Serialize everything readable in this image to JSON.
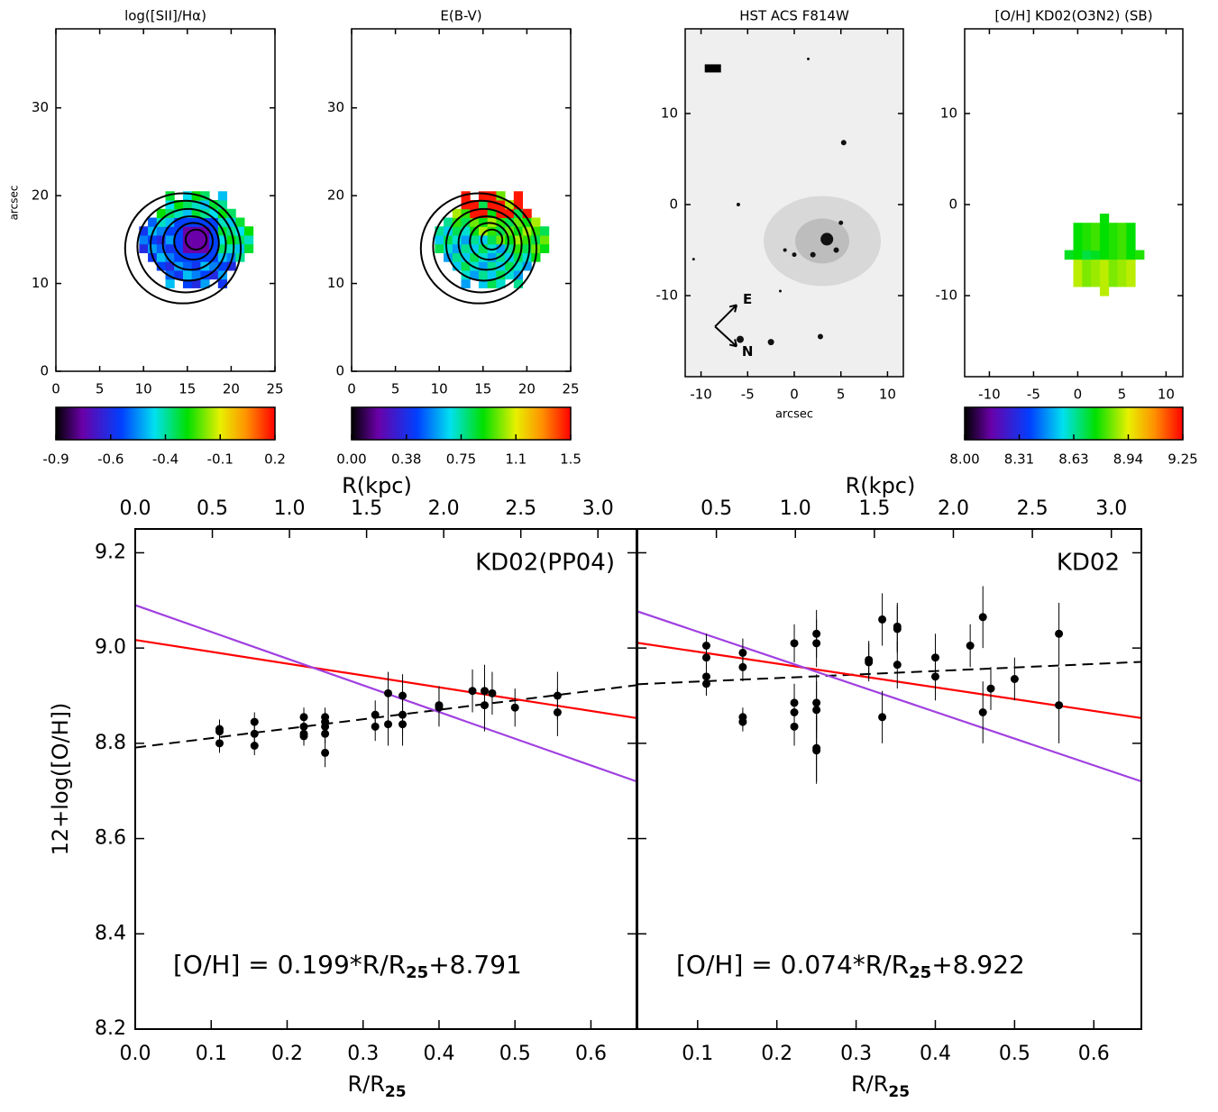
{
  "chart_data": [
    {
      "type": "heatmap",
      "title": "log([SII]/Hα)",
      "ylabel": "arcsec",
      "xlim": [
        0,
        25
      ],
      "ylim": [
        0,
        39
      ],
      "xticks": [
        0,
        5,
        10,
        15,
        20,
        25
      ],
      "yticks": [
        0,
        10,
        20,
        30
      ],
      "colormap": "rainbow",
      "colorbar": {
        "lim": [
          -0.9,
          0.2
        ],
        "ticks": [
          -0.9,
          {
            "value": -0.625,
            "label": "-0.6"
          },
          {
            "value": -0.35,
            "label": "-0.4"
          },
          {
            "value": -0.075,
            "label": "-0.1"
          },
          0.2
        ]
      }
    },
    {
      "type": "heatmap",
      "title": "E(B-V)",
      "xlim": [
        0,
        25
      ],
      "ylim": [
        0,
        39
      ],
      "xticks": [
        0,
        5,
        10,
        15,
        20,
        25
      ],
      "yticks": [
        0,
        10,
        20,
        30
      ],
      "colormap": "rainbow",
      "colorbar": {
        "lim": [
          0,
          1.5
        ],
        "ticks": [
          {
            "value": 0,
            "label": "0.00"
          },
          {
            "value": 0.375,
            "label": "0.38"
          },
          0.75,
          {
            "value": 1.125,
            "label": "1.1"
          },
          1.5
        ]
      }
    },
    {
      "type": "image",
      "title": "HST ACS F814W",
      "xlabel": "arcsec",
      "xlim": [
        -11.7,
        11.7
      ],
      "ylim": [
        -18.9,
        19.3
      ],
      "xticks": [
        -10,
        -5,
        0,
        5,
        10
      ],
      "yticks": [
        -10,
        0,
        10
      ],
      "annotations": [
        "E",
        "N"
      ]
    },
    {
      "type": "heatmap",
      "title": "[O/H] KD02(O3N2) (SB)",
      "xlim": [
        -12.8,
        11.9
      ],
      "ylim": [
        -18.9,
        19.3
      ],
      "xticks": [
        -10,
        -5,
        0,
        5,
        10
      ],
      "yticks": [
        -10,
        0,
        10
      ],
      "colormap": "rainbow",
      "colorbar": {
        "lim": [
          8,
          9.25
        ],
        "ticks": [
          {
            "value": 8,
            "label": "8.00"
          },
          {
            "value": 8.3125,
            "label": "8.31"
          },
          {
            "value": 8.625,
            "label": "8.63"
          },
          {
            "value": 8.9375,
            "label": "8.94"
          },
          9.25
        ]
      }
    },
    {
      "type": "scatter",
      "label": "KD02(PP04)",
      "ylabel": "12+log([O/H])",
      "xlabel": "R/R",
      "xlabel_sub": "25",
      "x2label": "R(kpc)",
      "equation": "[O/H] = 0.199*R/R",
      "equation_sub": "25",
      "equation_end": "+8.791",
      "xlim": [
        0,
        0.66
      ],
      "ylim": [
        8.2,
        9.25
      ],
      "x2lim": [
        0,
        3.25
      ],
      "xticks": [
        {
          "value": 0,
          "label": "0.0"
        },
        0.1,
        0.2,
        0.3,
        0.4,
        0.5,
        0.6
      ],
      "x2ticks": [
        {
          "value": 0,
          "label": "0.0"
        },
        0.5,
        {
          "value": 1,
          "label": "1.0"
        },
        1.5,
        {
          "value": 2,
          "label": "2.0"
        },
        2.5,
        {
          "value": 3,
          "label": "3.0"
        }
      ],
      "yticks": [
        8.2,
        8.4,
        8.6,
        8.8,
        {
          "value": 9,
          "label": "9.0"
        },
        9.2
      ],
      "color": "#000000",
      "x": [
        0.111,
        0.111,
        0.111,
        0.157,
        0.157,
        0.157,
        0.222,
        0.222,
        0.222,
        0.222,
        0.25,
        0.25,
        0.25,
        0.25,
        0.25,
        0.316,
        0.316,
        0.333,
        0.333,
        0.352,
        0.352,
        0.352,
        0.4,
        0.4,
        0.444,
        0.46,
        0.46,
        0.47,
        0.5,
        0.556,
        0.556
      ],
      "values": [
        8.83,
        8.825,
        8.8,
        8.845,
        8.82,
        8.795,
        8.855,
        8.835,
        8.82,
        8.815,
        8.855,
        8.845,
        8.835,
        8.82,
        8.78,
        8.86,
        8.835,
        8.905,
        8.84,
        8.9,
        8.86,
        8.84,
        8.88,
        8.875,
        8.91,
        8.91,
        8.88,
        8.905,
        8.875,
        8.9,
        8.865
      ],
      "errors": [
        0.02,
        0.02,
        0.02,
        0.02,
        0.02,
        0.02,
        0.02,
        0.02,
        0.02,
        0.02,
        0.02,
        0.02,
        0.02,
        0.02,
        0.03,
        0.03,
        0.03,
        0.045,
        0.045,
        0.045,
        0.045,
        0.045,
        0.04,
        0.04,
        0.045,
        0.055,
        0.055,
        0.045,
        0.04,
        0.05,
        0.05
      ],
      "lines": [
        {
          "style": "dashed",
          "color": "#000000",
          "x": [
            0,
            0.66
          ],
          "values": [
            8.791,
            8.922
          ]
        },
        {
          "style": "solid",
          "color": "#ff0000",
          "x": [
            0,
            0.66
          ],
          "values": [
            9.017,
            8.853
          ]
        },
        {
          "style": "solid",
          "color": "#a040e0",
          "x": [
            0,
            0.66
          ],
          "values": [
            9.09,
            8.72
          ]
        }
      ]
    },
    {
      "type": "scatter",
      "label": "KD02",
      "xlabel": "R/R",
      "xlabel_sub": "25",
      "x2label": "R(kpc)",
      "equation": "[O/H] = 0.074*R/R",
      "equation_sub": "25",
      "equation_end": "+8.922",
      "xlim": [
        0.024,
        0.66
      ],
      "ylim": [
        8.2,
        9.25
      ],
      "x2lim": [
        0,
        3.19
      ],
      "xticks": [
        0.1,
        0.2,
        0.3,
        0.4,
        0.5,
        0.6
      ],
      "x2ticks": [
        0.5,
        {
          "value": 1,
          "label": "1.0"
        },
        1.5,
        {
          "value": 2,
          "label": "2.0"
        },
        2.5,
        {
          "value": 3,
          "label": "3.0"
        }
      ],
      "yticks": [
        8.2,
        8.4,
        8.6,
        8.8,
        9,
        9.2
      ],
      "color": "#000000",
      "x": [
        0.111,
        0.111,
        0.111,
        0.111,
        0.157,
        0.157,
        0.157,
        0.157,
        0.222,
        0.222,
        0.222,
        0.222,
        0.25,
        0.25,
        0.25,
        0.25,
        0.25,
        0.25,
        0.316,
        0.316,
        0.333,
        0.333,
        0.352,
        0.352,
        0.352,
        0.4,
        0.4,
        0.444,
        0.46,
        0.46,
        0.47,
        0.5,
        0.556,
        0.556
      ],
      "values": [
        9.005,
        8.98,
        8.94,
        8.925,
        8.99,
        8.96,
        8.855,
        8.845,
        9.01,
        8.885,
        8.865,
        8.835,
        9.03,
        9.01,
        8.885,
        8.87,
        8.79,
        8.785,
        8.975,
        8.97,
        9.06,
        8.855,
        9.045,
        9.04,
        8.965,
        8.98,
        8.94,
        9.005,
        9.065,
        8.865,
        8.915,
        8.935,
        9.03,
        8.88
      ],
      "errors": [
        0.025,
        0.025,
        0.025,
        0.025,
        0.03,
        0.03,
        0.02,
        0.02,
        0.04,
        0.04,
        0.04,
        0.04,
        0.05,
        0.05,
        0.06,
        0.06,
        0.07,
        0.07,
        0.04,
        0.04,
        0.055,
        0.055,
        0.05,
        0.05,
        0.05,
        0.05,
        0.05,
        0.045,
        0.065,
        0.065,
        0.045,
        0.045,
        0.065,
        0.08
      ],
      "lines": [
        {
          "style": "dashed",
          "color": "#000000",
          "x": [
            0.024,
            0.66
          ],
          "values": [
            8.924,
            8.971
          ]
        },
        {
          "style": "solid",
          "color": "#ff0000",
          "x": [
            0.024,
            0.66
          ],
          "values": [
            9.011,
            8.853
          ]
        },
        {
          "style": "solid",
          "color": "#a040e0",
          "x": [
            0.024,
            0.66
          ],
          "values": [
            9.077,
            8.72
          ]
        }
      ]
    }
  ]
}
